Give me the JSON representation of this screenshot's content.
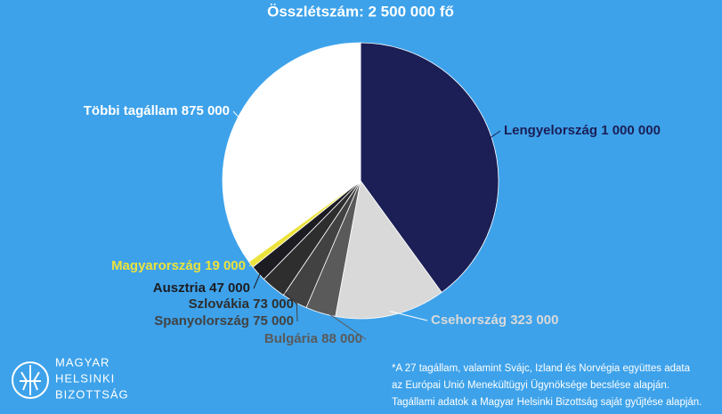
{
  "chart_data": {
    "type": "pie",
    "title": "Összlétszám: 2 500 000 fő",
    "categories": [
      "Lengyelország",
      "Csehország",
      "Bulgária",
      "Spanyolország",
      "Szlovákia",
      "Ausztria",
      "Magyarország",
      "Többi tagállam"
    ],
    "values": [
      1000000,
      323000,
      88000,
      75000,
      73000,
      47000,
      19000,
      875000
    ],
    "value_labels": [
      "1 000 000",
      "323 000",
      "88 000",
      "75 000",
      "73 000",
      "47 000",
      "19 000",
      "875 000"
    ],
    "colors": [
      "#1b1f56",
      "#d9d9d9",
      "#5a5a5a",
      "#424242",
      "#2e2e2e",
      "#1c1c22",
      "#ece23c",
      "#ffffff"
    ]
  },
  "footnote": [
    "*A 27 tagállam, valamint Svájc, Izland és Norvégia együttes adata",
    "az Európai Unió Menekültügyi Ügynöksége becslése alapján.",
    "Tagállami adatok a Magyar Helsinki Bizottság saját gyűjtése alapján."
  ],
  "logo": [
    "MAGYAR",
    "HELSINKI",
    "BIZOTTSÁG"
  ]
}
